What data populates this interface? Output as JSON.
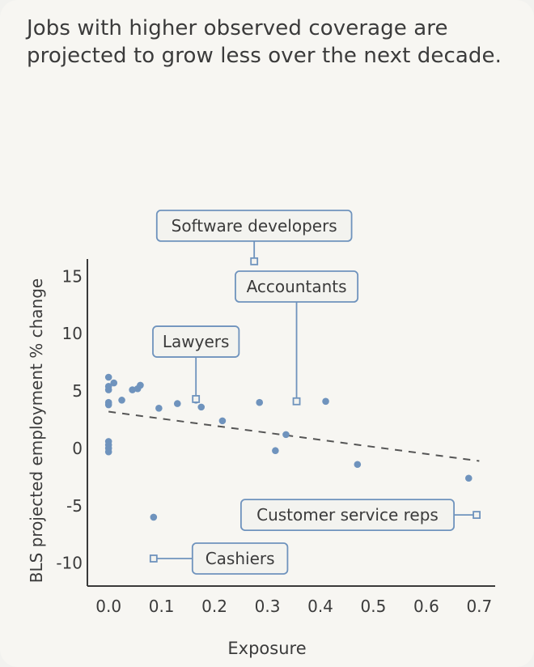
{
  "title": "Jobs with higher observed coverage are projected to grow less over the next decade.",
  "chart_data": {
    "type": "scatter",
    "xlabel": "Exposure",
    "ylabel": "BLS projected employment % change",
    "xlim": [
      -0.04,
      0.73
    ],
    "ylim": [
      -12,
      16.5
    ],
    "x_ticks": [
      0.0,
      0.1,
      0.2,
      0.3,
      0.4,
      0.5,
      0.6,
      0.7
    ],
    "x_tick_labels": [
      "0.0",
      "0.1",
      "0.2",
      "0.3",
      "0.4",
      "0.5",
      "0.6",
      "0.7"
    ],
    "y_ticks": [
      15,
      10,
      5,
      0,
      -5,
      -10
    ],
    "y_tick_labels": [
      "15",
      "10",
      "5",
      "0",
      "-5",
      "-10"
    ],
    "points": [
      {
        "x": 0.0,
        "y": 6.2
      },
      {
        "x": 0.0,
        "y": 5.4
      },
      {
        "x": 0.0,
        "y": 5.1
      },
      {
        "x": 0.0,
        "y": 4.0
      },
      {
        "x": 0.0,
        "y": 3.8
      },
      {
        "x": 0.0,
        "y": 0.6
      },
      {
        "x": 0.0,
        "y": 0.3
      },
      {
        "x": 0.0,
        "y": 0.0
      },
      {
        "x": 0.0,
        "y": -0.3
      },
      {
        "x": 0.01,
        "y": 5.7
      },
      {
        "x": 0.025,
        "y": 4.2
      },
      {
        "x": 0.045,
        "y": 5.1
      },
      {
        "x": 0.055,
        "y": 5.2
      },
      {
        "x": 0.06,
        "y": 5.5
      },
      {
        "x": 0.085,
        "y": -6.0
      },
      {
        "x": 0.095,
        "y": 3.5
      },
      {
        "x": 0.13,
        "y": 3.9
      },
      {
        "x": 0.165,
        "y": 4.2
      },
      {
        "x": 0.175,
        "y": 3.6
      },
      {
        "x": 0.215,
        "y": 2.4
      },
      {
        "x": 0.285,
        "y": 4.0
      },
      {
        "x": 0.315,
        "y": -0.2
      },
      {
        "x": 0.335,
        "y": 1.2
      },
      {
        "x": 0.41,
        "y": 4.1
      },
      {
        "x": 0.47,
        "y": -1.4
      },
      {
        "x": 0.68,
        "y": -2.6
      }
    ],
    "trend": {
      "x": [
        0.0,
        0.7
      ],
      "y": [
        3.2,
        -1.1
      ]
    },
    "annotations": [
      {
        "label": "Software developers",
        "x": 0.275,
        "y": 16.3,
        "label_y": 19.4,
        "side": "above"
      },
      {
        "label": "Accountants",
        "x": 0.355,
        "y": 4.1,
        "label_y": 14.1,
        "side": "above"
      },
      {
        "label": "Lawyers",
        "x": 0.165,
        "y": 4.3,
        "label_y": 9.3,
        "side": "above"
      },
      {
        "label": "Customer service reps",
        "x": 0.695,
        "y": -5.8,
        "label_y": -5.8,
        "side": "left"
      },
      {
        "label": "Cashiers",
        "x": 0.085,
        "y": -9.6,
        "label_y": -9.6,
        "side": "right"
      }
    ],
    "colors": {
      "point": "#6f93bd",
      "axis": "#3a3a3a",
      "trend": "#555555",
      "callout_border": "#6f93bd",
      "callout_fill": "#f3f3ef",
      "text": "#3b3b3b"
    },
    "grid": false,
    "legend": "none"
  }
}
